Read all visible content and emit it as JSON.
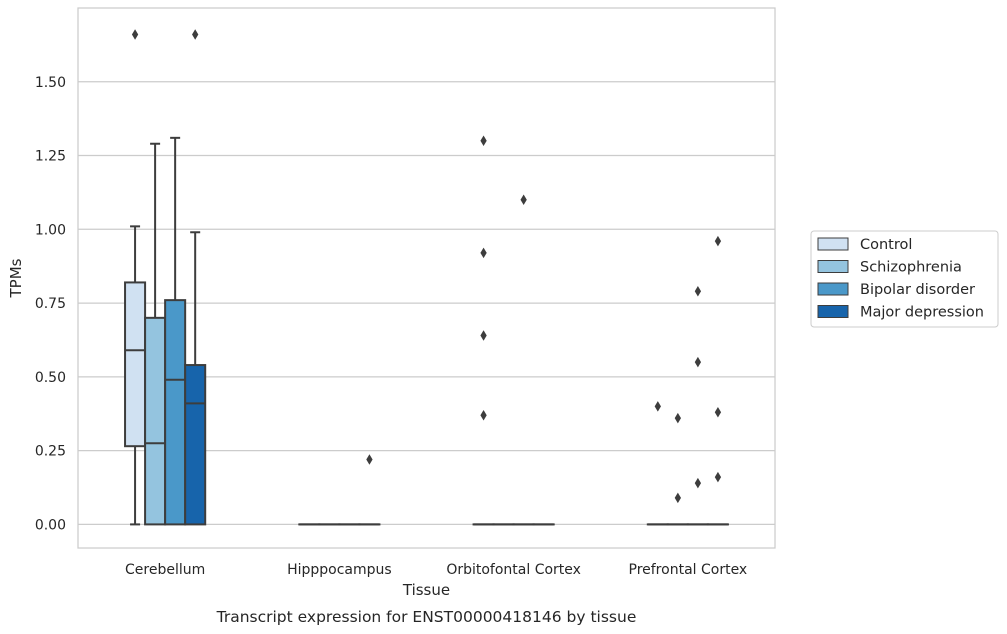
{
  "caption": "Transcript expression for ENST00000418146 by tissue",
  "chart_data": {
    "type": "box",
    "xlabel": "Tissue",
    "ylabel": "TPMs",
    "ylim": [
      -0.08,
      1.75
    ],
    "yticks": [
      0.0,
      0.25,
      0.5,
      0.75,
      1.0,
      1.25,
      1.5
    ],
    "ytick_labels": [
      "0.00",
      "0.25",
      "0.50",
      "0.75",
      "1.00",
      "1.25",
      "1.50"
    ],
    "grid": "horizontal",
    "legend_placement": "right",
    "categories": [
      "Cerebellum",
      "Hipppocampus",
      "Orbitofontal Cortex",
      "Prefrontal Cortex"
    ],
    "series": [
      {
        "name": "Control",
        "color": "#d0e1f2",
        "boxes": [
          {
            "whisker_low": 0.0,
            "q1": 0.265,
            "median": 0.59,
            "q3": 0.82,
            "whisker_high": 1.01,
            "outliers": [
              1.66
            ]
          },
          {
            "whisker_low": 0.0,
            "q1": 0.0,
            "median": 0.0,
            "q3": 0.0,
            "whisker_high": 0.0,
            "outliers": []
          },
          {
            "whisker_low": 0.0,
            "q1": 0.0,
            "median": 0.0,
            "q3": 0.0,
            "whisker_high": 0.0,
            "outliers": [
              0.37,
              0.64,
              0.92,
              1.3
            ]
          },
          {
            "whisker_low": 0.0,
            "q1": 0.0,
            "median": 0.0,
            "q3": 0.0,
            "whisker_high": 0.0,
            "outliers": [
              0.4
            ]
          }
        ]
      },
      {
        "name": "Schizophrenia",
        "color": "#94c4df",
        "boxes": [
          {
            "whisker_low": 0.0,
            "q1": 0.0,
            "median": 0.275,
            "q3": 0.7,
            "whisker_high": 1.29,
            "outliers": []
          },
          {
            "whisker_low": 0.0,
            "q1": 0.0,
            "median": 0.0,
            "q3": 0.0,
            "whisker_high": 0.0,
            "outliers": []
          },
          {
            "whisker_low": 0.0,
            "q1": 0.0,
            "median": 0.0,
            "q3": 0.0,
            "whisker_high": 0.0,
            "outliers": []
          },
          {
            "whisker_low": 0.0,
            "q1": 0.0,
            "median": 0.0,
            "q3": 0.0,
            "whisker_high": 0.0,
            "outliers": [
              0.09,
              0.36
            ]
          }
        ]
      },
      {
        "name": "Bipolar disorder",
        "color": "#4a98c9",
        "boxes": [
          {
            "whisker_low": 0.0,
            "q1": 0.0,
            "median": 0.49,
            "q3": 0.76,
            "whisker_high": 1.31,
            "outliers": []
          },
          {
            "whisker_low": 0.0,
            "q1": 0.0,
            "median": 0.0,
            "q3": 0.0,
            "whisker_high": 0.0,
            "outliers": []
          },
          {
            "whisker_low": 0.0,
            "q1": 0.0,
            "median": 0.0,
            "q3": 0.0,
            "whisker_high": 0.0,
            "outliers": [
              1.1
            ]
          },
          {
            "whisker_low": 0.0,
            "q1": 0.0,
            "median": 0.0,
            "q3": 0.0,
            "whisker_high": 0.0,
            "outliers": [
              0.14,
              0.55,
              0.79
            ]
          }
        ]
      },
      {
        "name": "Major depression",
        "color": "#1764ab",
        "boxes": [
          {
            "whisker_low": 0.0,
            "q1": 0.0,
            "median": 0.41,
            "q3": 0.54,
            "whisker_high": 0.99,
            "outliers": [
              1.66
            ]
          },
          {
            "whisker_low": 0.0,
            "q1": 0.0,
            "median": 0.0,
            "q3": 0.0,
            "whisker_high": 0.0,
            "outliers": [
              0.22
            ]
          },
          {
            "whisker_low": 0.0,
            "q1": 0.0,
            "median": 0.0,
            "q3": 0.0,
            "whisker_high": 0.0,
            "outliers": []
          },
          {
            "whisker_low": 0.0,
            "q1": 0.0,
            "median": 0.0,
            "q3": 0.0,
            "whisker_high": 0.0,
            "outliers": [
              0.16,
              0.38,
              0.96
            ]
          }
        ]
      }
    ]
  }
}
